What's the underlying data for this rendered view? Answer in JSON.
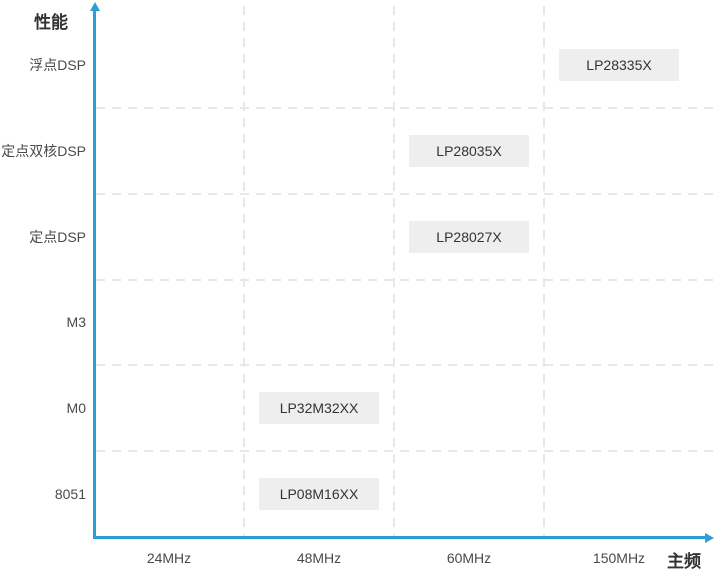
{
  "chart_data": {
    "type": "scatter",
    "title": "",
    "xlabel": "主频",
    "ylabel": "性能",
    "x_categories": [
      "24MHz",
      "48MHz",
      "60MHz",
      "150MHz"
    ],
    "y_categories": [
      "浮点DSP",
      "定点双核DSP",
      "定点DSP",
      "M3",
      "M0",
      "8051"
    ],
    "points": [
      {
        "label": "LP28335X",
        "x": "150MHz",
        "y": "浮点DSP"
      },
      {
        "label": "LP28035X",
        "x": "60MHz",
        "y": "定点双核DSP"
      },
      {
        "label": "LP28027X",
        "x": "60MHz",
        "y": "定点DSP"
      },
      {
        "label": "LP32M32XX",
        "x": "48MHz",
        "y": "M0"
      },
      {
        "label": "LP08M16XX",
        "x": "48MHz",
        "y": "8051"
      }
    ],
    "legend": "none",
    "grid": {
      "style": "dashed",
      "vertical_lines_at_column_boundaries": 3,
      "horizontal_lines_at_row_boundaries": 5
    },
    "colors": {
      "axis": "#299fd3",
      "grid": "#e8e8e8",
      "point_box_bg": "#eeeeee",
      "point_text": "#333333",
      "tick_text": "#4a4a4a",
      "axis_title_text": "#333333",
      "background": "#ffffff"
    }
  }
}
